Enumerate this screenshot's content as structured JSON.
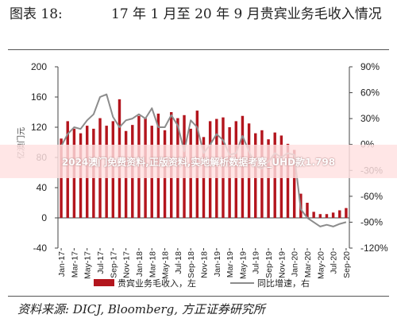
{
  "header": {
    "figure_no": "图表 18:",
    "title": "17 年 1 月至 20 年 9 月贵宾业务毛收入情况"
  },
  "overlay": {
    "banner_text": "2024澳门免费资料,正版资料,实地解析数据考察_UHD款1.798"
  },
  "footer": {
    "source": "资料来源: DICJ, Bloomberg, 方正证券研究所"
  },
  "colors": {
    "bar": "#b3151d",
    "line": "#8c8c8c",
    "axis": "#444444"
  },
  "chart_data": {
    "type": "bar",
    "title": "17 年 1 月至 20 年 9 月贵宾业务毛收入情况",
    "ylabel": "亿澳门元",
    "ylim": [
      -40,
      200
    ],
    "yticks": [
      -40,
      0,
      40,
      80,
      120,
      160,
      200
    ],
    "y2lim": [
      -120,
      90
    ],
    "y2ticks": [
      "-120%",
      "-90%",
      "-60%",
      "-30%",
      "0%",
      "30%",
      "60%",
      "90%"
    ],
    "grid": false,
    "legend_position": "bottom",
    "xtick_labels": [
      "Jan-17",
      "Mar-17",
      "May-17",
      "Jul-17",
      "Sep-17",
      "Nov-17",
      "Jan-18",
      "Mar-18",
      "May-18",
      "Jul-18",
      "Sep-18",
      "Nov-18",
      "Jan-19",
      "Mar-19",
      "May-19",
      "Jul-19",
      "Sep-19",
      "Nov-19",
      "Jan-20",
      "Mar-20",
      "May-20",
      "Jul-20",
      "Sep-20"
    ],
    "categories": [
      "Jan-17",
      "Feb-17",
      "Mar-17",
      "Apr-17",
      "May-17",
      "Jun-17",
      "Jul-17",
      "Aug-17",
      "Sep-17",
      "Oct-17",
      "Nov-17",
      "Dec-17",
      "Jan-18",
      "Feb-18",
      "Mar-18",
      "Apr-18",
      "May-18",
      "Jun-18",
      "Jul-18",
      "Aug-18",
      "Sep-18",
      "Oct-18",
      "Nov-18",
      "Dec-18",
      "Jan-19",
      "Feb-19",
      "Mar-19",
      "Apr-19",
      "May-19",
      "Jun-19",
      "Jul-19",
      "Aug-19",
      "Sep-19",
      "Oct-19",
      "Nov-19",
      "Dec-19",
      "Jan-20",
      "Feb-20",
      "Mar-20",
      "Apr-20",
      "May-20",
      "Jun-20",
      "Jul-20",
      "Aug-20",
      "Sep-20"
    ],
    "series": [
      {
        "name": "贵宾业务毛收入，左",
        "axis": "left",
        "type": "bar",
        "values": [
          105,
          128,
          118,
          112,
          122,
          118,
          132,
          122,
          128,
          157,
          115,
          123,
          135,
          132,
          122,
          138,
          116,
          140,
          132,
          136,
          118,
          142,
          107,
          128,
          131,
          133,
          120,
          128,
          135,
          125,
          112,
          116,
          104,
          113,
          109,
          98,
          90,
          32,
          20,
          8,
          5,
          5,
          7,
          10,
          13
        ]
      },
      {
        "name": "同比增速，右",
        "axis": "right",
        "type": "line",
        "values": [
          -2,
          12,
          20,
          18,
          28,
          35,
          55,
          58,
          32,
          20,
          28,
          30,
          35,
          30,
          42,
          20,
          20,
          34,
          22,
          -8,
          28,
          20,
          -10,
          0,
          12,
          5,
          -12,
          -10,
          10,
          -8,
          -25,
          -28,
          -20,
          -10,
          -15,
          -10,
          -12,
          -75,
          -85,
          -90,
          -95,
          -93,
          -95,
          -92,
          -90
        ]
      }
    ]
  }
}
